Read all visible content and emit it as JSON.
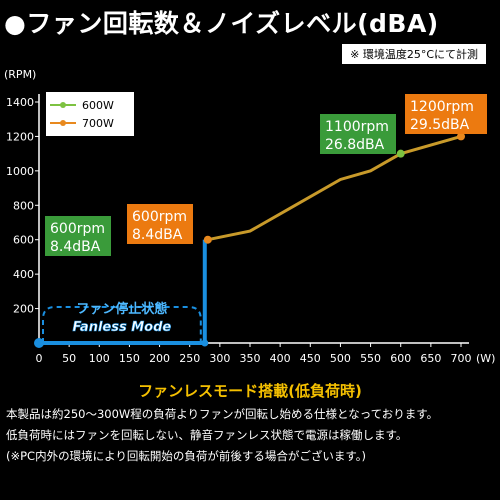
{
  "header": {
    "title": "●ファン回転数＆ノイズレベル(dBA)",
    "note": "※ 環境温度25°Cにて計測"
  },
  "colors": {
    "series_600w": "#7dc241",
    "series_700w": "#e8891e",
    "line": "#c89a2a",
    "fanless": "#1a8fe0",
    "box_green": "#3a9b3a",
    "box_orange": "#ec7a10",
    "subtitle": "#f5c000"
  },
  "chart_data": {
    "type": "line",
    "ylabel": "(RPM)",
    "xlabel": "(W)",
    "xlim": [
      0,
      700
    ],
    "ylim": [
      0,
      1400
    ],
    "xticks": [
      0,
      50,
      100,
      150,
      200,
      250,
      300,
      350,
      400,
      450,
      500,
      550,
      600,
      650,
      700
    ],
    "yticks": [
      200,
      400,
      600,
      800,
      1000,
      1200,
      1400
    ],
    "grid": false,
    "legend": "top-left",
    "series": [
      {
        "name": "600W",
        "x": [
          0,
          275,
          275,
          280,
          350,
          425,
          500,
          550,
          600
        ],
        "y": [
          0,
          0,
          0,
          600,
          650,
          800,
          950,
          1000,
          1100
        ]
      },
      {
        "name": "700W",
        "x": [
          0,
          275,
          275,
          280,
          350,
          425,
          500,
          550,
          600,
          700
        ],
        "y": [
          0,
          0,
          0,
          600,
          650,
          800,
          950,
          1000,
          1100,
          1200
        ]
      }
    ],
    "markers": [
      {
        "series": "700W",
        "x": 280,
        "y": 600
      },
      {
        "series": "600W",
        "x": 600,
        "y": 1100
      },
      {
        "series": "700W",
        "x": 700,
        "y": 1200
      }
    ],
    "annotations": {
      "green_600": [
        "600rpm",
        "8.4dBA"
      ],
      "orange_600": [
        "600rpm",
        "8.4dBA"
      ],
      "green_1100": [
        "1100rpm",
        "26.8dBA"
      ],
      "orange_1200": [
        "1200rpm",
        "29.5dBA"
      ],
      "fanless": [
        "ファン停止状態",
        "Fanless Mode"
      ]
    }
  },
  "section": {
    "subtitle": "ファンレスモード搭載(低負荷時)",
    "lines": [
      "本製品は約250～300W程の負荷よりファンが回転し始める仕様となっております。",
      "低負荷時にはファンを回転しない、静音ファンレス状態で電源は稼働します。",
      "(※PC内外の環境により回転開始の負荷が前後する場合がございます。)"
    ]
  }
}
